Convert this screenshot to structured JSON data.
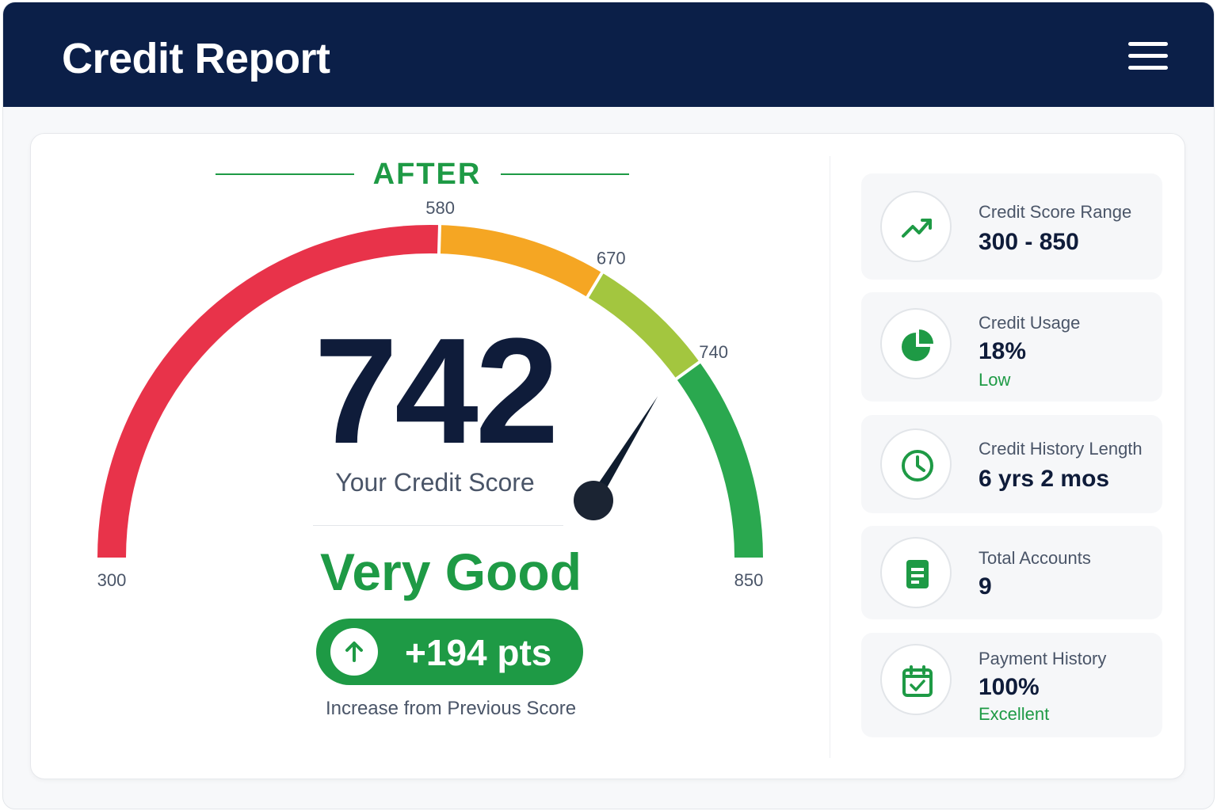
{
  "header": {
    "title": "Credit Report",
    "menu_icon": "hamburger-menu-icon"
  },
  "gauge": {
    "section_label": "AFTER",
    "min": 300,
    "max": 850,
    "ticks": [
      "300",
      "580",
      "670",
      "740",
      "850"
    ],
    "score": "742",
    "score_value": 742,
    "score_label": "Your Credit Score",
    "rating": "Very Good",
    "change": "+194 pts",
    "change_icon": "arrow-up-icon",
    "change_caption": "Increase from Previous Score",
    "bands": [
      {
        "from": 300,
        "to": 580,
        "color": "#e8334a"
      },
      {
        "from": 580,
        "to": 670,
        "color": "#f5a623"
      },
      {
        "from": 670,
        "to": 740,
        "color": "#a3c63f"
      },
      {
        "from": 740,
        "to": 850,
        "color": "#2aa84f"
      }
    ]
  },
  "stats": [
    {
      "icon": "trend-up-icon",
      "label": "Credit Score Range",
      "value": "300 - 850",
      "sub": ""
    },
    {
      "icon": "pie-chart-icon",
      "label": "Credit Usage",
      "value": "18%",
      "sub": "Low"
    },
    {
      "icon": "clock-icon",
      "label": "Credit History Length",
      "value": "6 yrs 2 mos",
      "sub": ""
    },
    {
      "icon": "document-icon",
      "label": "Total Accounts",
      "value": "9",
      "sub": ""
    },
    {
      "icon": "calendar-check-icon",
      "label": "Payment History",
      "value": "100%",
      "sub": "Excellent"
    }
  ],
  "colors": {
    "header_bg": "#0b1f48",
    "accent_green": "#1e9a45",
    "text_dark": "#0f1c3a"
  }
}
